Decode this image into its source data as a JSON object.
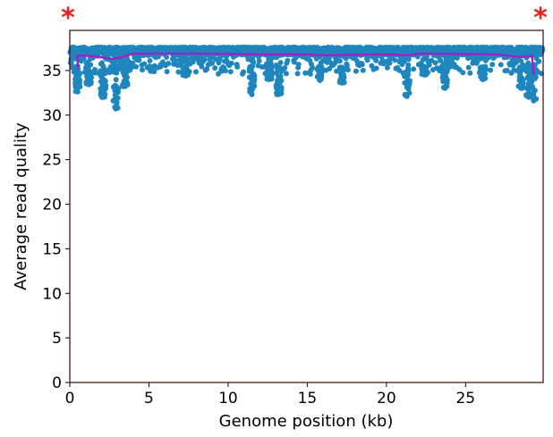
{
  "colors": {
    "points": "#1f86bd",
    "mean_line": "#a020c8",
    "asterisk": "#e8201a",
    "frame": "#3a0c0c"
  },
  "markers": {
    "left": "*",
    "right": "*"
  },
  "chart_data": {
    "type": "scatter",
    "title": "",
    "xlabel": "Genome position (kb)",
    "ylabel": "Average read quality",
    "xlim": [
      0,
      29.9
    ],
    "ylim": [
      0,
      39.5
    ],
    "xticks": [
      "0",
      "5",
      "10",
      "15",
      "20",
      "25"
    ],
    "yticks": [
      "0",
      "5",
      "10",
      "15",
      "20",
      "25",
      "30",
      "35"
    ],
    "grid": false,
    "series": [
      {
        "kind": "scatter",
        "description_values": "per-position average read quality",
        "baseline_band": [
          34.6,
          37.6
        ],
        "dips": [
          {
            "x": 0.5,
            "min": 32.6
          },
          {
            "x": 1.2,
            "min": 33.4
          },
          {
            "x": 2.1,
            "min": 32.0
          },
          {
            "x": 2.9,
            "min": 30.7
          },
          {
            "x": 3.5,
            "min": 33.2
          },
          {
            "x": 7.3,
            "min": 34.4
          },
          {
            "x": 11.5,
            "min": 32.3
          },
          {
            "x": 12.6,
            "min": 34.0
          },
          {
            "x": 13.2,
            "min": 32.3
          },
          {
            "x": 15.8,
            "min": 33.9
          },
          {
            "x": 17.2,
            "min": 33.6
          },
          {
            "x": 21.3,
            "min": 32.1
          },
          {
            "x": 22.4,
            "min": 34.5
          },
          {
            "x": 23.7,
            "min": 33.0
          },
          {
            "x": 26.1,
            "min": 34.0
          },
          {
            "x": 28.5,
            "min": 33.0
          },
          {
            "x": 29.0,
            "min": 32.0
          },
          {
            "x": 29.3,
            "min": 31.6
          }
        ]
      },
      {
        "kind": "line",
        "x": [
          0.5,
          0.5,
          1.5,
          2.7,
          3.3,
          4.0,
          8.0,
          12.0,
          15.0,
          16.0,
          20.0,
          21.5,
          22.0,
          27.0,
          28.5,
          29.2,
          29.3
        ],
        "y": [
          35.2,
          36.7,
          36.6,
          36.3,
          36.5,
          36.9,
          36.9,
          36.8,
          36.8,
          36.7,
          36.8,
          36.7,
          36.9,
          36.8,
          36.5,
          36.6,
          34.5
        ]
      }
    ]
  }
}
